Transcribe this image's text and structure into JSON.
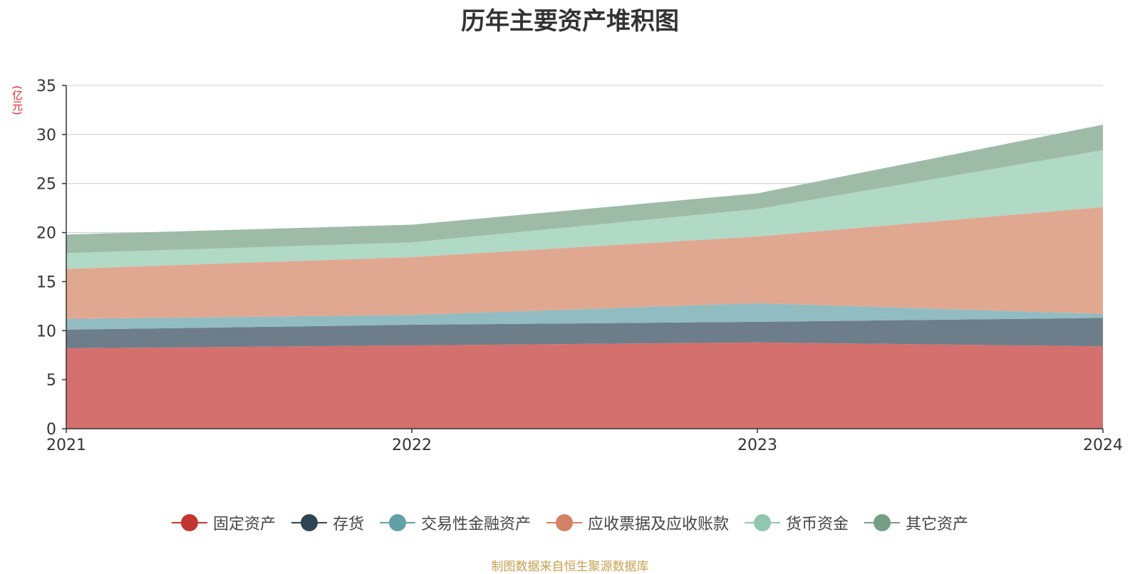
{
  "chart_data": {
    "type": "area",
    "stacked": true,
    "title": "历年主要资产堆积图",
    "y_unit_label": "(亿元)",
    "source_note": "制图数据来自恒生聚源数据库",
    "x": [
      "2021",
      "2022",
      "2023",
      "2024"
    ],
    "ylim": [
      0,
      35
    ],
    "y_ticks": [
      0,
      5,
      10,
      15,
      20,
      25,
      30,
      35
    ],
    "grid": true,
    "legend_position": "bottom",
    "series": [
      {
        "name": "固定资产",
        "color": "#c23531",
        "fill": "#d4706d",
        "values": [
          8.2,
          8.5,
          8.8,
          8.4
        ]
      },
      {
        "name": "存货",
        "color": "#2f4554",
        "fill": "#6e7d8a",
        "values": [
          1.9,
          2.1,
          2.1,
          2.9
        ]
      },
      {
        "name": "交易性金融资产",
        "color": "#61a0a8",
        "fill": "#91bcc2",
        "values": [
          1.1,
          1.0,
          1.9,
          0.4
        ]
      },
      {
        "name": "应收票据及应收账款",
        "color": "#d48265",
        "fill": "#e0a891",
        "values": [
          5.1,
          5.9,
          6.8,
          10.9
        ]
      },
      {
        "name": "货币资金",
        "color": "#91c7ae",
        "fill": "#b0d9c6",
        "values": [
          1.6,
          1.5,
          2.8,
          5.8
        ]
      },
      {
        "name": "其它资产",
        "color": "#749f83",
        "fill": "#9ebba8",
        "values": [
          1.9,
          1.8,
          1.6,
          2.6
        ]
      }
    ]
  }
}
